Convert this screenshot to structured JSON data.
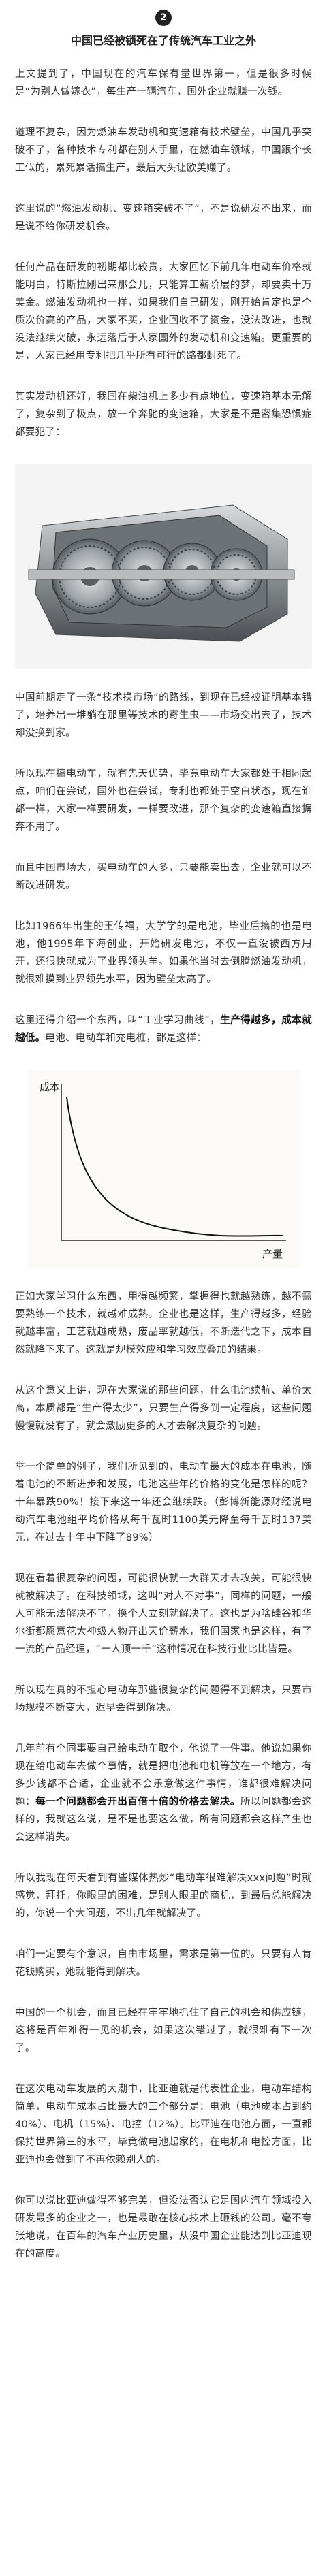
{
  "header": {
    "number": "2",
    "title": "中国已经被锁死在了传统汽车工业之外"
  },
  "section_1": [
    [
      {
        "text": "上文提到了，中国现在的汽车保有量世界第一，但是很多时候是“为别人做嫁衣”，每生产一辆汽车，国外企业就赚一次钱。"
      }
    ],
    [
      {
        "text": "道理不复杂，因为燃油车发动机和变速箱有技术壁垒，中国几乎突破不了，各种技术专利都在别人手里，在燃油车领域，中国跟个长工似的，累死累活搞生产，最后大头让欧美赚了。"
      }
    ],
    [
      {
        "text": "这里说的“燃油发动机、变速箱突破不了”，不是说研发不出来，而是说不给你研发机会。"
      }
    ],
    [
      {
        "text": "任何产品在研发的初期都比较贵，大家回忆下前几年电动车价格就能明白，特斯拉刚出来那会儿，只能算工薪阶层的梦，却要卖十万美金。燃油发动机也一样，如果我们自己研发，刚开始肯定也是个质次价高的产品，大家不买，企业回收不了资金，没法改进，也就没法继续突破，永远落后于人家国外的发动机和变速箱。更重要的是，人家已经用专利把几乎所有可行的路都封死了。"
      }
    ],
    [
      {
        "text": "其实发动机还好，我国在柴油机上多少有点地位，变速箱基本无解了，复杂到了极点，放一个奔驰的变速箱，大家是不是密集恐惧症都要犯了："
      }
    ]
  ],
  "section_2": [
    [
      {
        "text": "中国前期走了一条“技术换市场”的路线，到现在已经被证明基本错了，培养出一堆躺在那里等技术的寄生虫——市场交出去了，技术却没换到家。"
      }
    ],
    [
      {
        "text": "所以现在搞电动车，就有先天优势，毕竟电动车大家都处于相同起点，咱们在尝试，国外也在尝试，专利也都处于空白状态，现在谁都一样，大家一样要研发，一样要改进，那个复杂的变速箱直接摒弃不用了。"
      }
    ],
    [
      {
        "text": "而且中国市场大，买电动车的人多，只要能卖出去，企业就可以不断改进研发。"
      }
    ],
    [
      {
        "text": "比如1966年出生的王传福，大学学的是电池，毕业后搞的也是电池，他1995年下海创业，开始研发电池，不仅一直没被西方甩开，还很快就成为了业界领头羊。如果他当时去倒腾燃油发动机，就很难摸到业界领先水平，因为壁垒太高了。"
      }
    ],
    [
      {
        "text": "这里还得介绍一个东西，叫“工业学习曲线”，"
      },
      {
        "text": "生产得越多，成本就越低。",
        "bold": true
      },
      {
        "text": "电池、电动车和充电桩，都是这样："
      }
    ]
  ],
  "figure": {
    "y_label": "成本",
    "x_label": "产量"
  },
  "section_3": [
    [
      {
        "text": "正如大家学习什么东西，用得越频繁，掌握得也就越熟练，越不需要熟练一个技术，就越难成熟。企业也是这样，生产得越多，经验就越丰富，工艺就越成熟，废品率就越低，不断迭代之下，成本自然就降下来了。这就是规模效应和学习效应叠加的结果。"
      }
    ],
    [
      {
        "text": "从这个意义上讲，现在大家说的那些问题，什么电池续航、单价太高，本质都是“生产得太少”，只要生产得多到一定程度，这些问题慢慢就没有了，就会激励更多的人才去解决复杂的问题。"
      }
    ],
    [
      {
        "text": "举一个简单的例子，我们所见到的，电动车最大的成本在电池，随着电池的不断进步和发展，电池这些年的价格的变化是怎样的呢？十年暴跌90%！接下来这十年还会继续跌。（彭博新能源财经说电动汽车电池组平均价格从每千瓦时1100美元降至每千瓦时137美元，在过去十年中下降了89%）"
      }
    ],
    [
      {
        "text": "现在看着很复杂的问题，可能很快就一大群天才去攻关，可能很快就被解决了。在科技领域，这叫“对人不对事”，同样的问题，一般人可能无法解决不了，换个人立刻就解决了。这也是为啥硅谷和华尔街都愿意花大神级人物开出天价薪水，我们国家也是这样，有了一流的产品经理，“一人顶一千”这种情况在科技行业比比皆是。"
      }
    ],
    [
      {
        "text": "所以现在真的不担心电动车那些很复杂的问题得不到解决，只要市场规模不断变大，迟早会得到解决。"
      }
    ],
    [
      {
        "text": "几年前有个同事要自己给电动车取个，他说了一件事。他说如果你现在给电动车去做个事情，就是把电池和电机等放在一个地方，有多少钱都不合适，企业就不会乐意做这件事情，谁都很难解决问题："
      },
      {
        "text": "每一个问题都会开出百倍十倍的价格去解决。",
        "bold": true
      },
      {
        "text": "所以问题都会这样的，我就这么说，是不是也要这么做，所有问题都会这样产生也会这样消失。"
      }
    ],
    [
      {
        "text": "所以我现在每天看到有些媒体热炒“电动车很难解决xxx问题”时就感觉，拜托，你眼里的困难，是别人眼里的商机，到最后总能解决的，你说一个大问题，不出几年就解决了。"
      }
    ],
    [
      {
        "text": "咱们一定要有个意识，自由市场里，需求是第一位的。只要有人肯花钱购买，她就能得到解决。"
      }
    ],
    [
      {
        "text": "中国的一个机会，而且已经在牢牢地抓住了自己的机会和供应链，这将是百年难得一见的机会，如果这次错过了，就很难有下一次了。"
      }
    ],
    [
      {
        "text": "在这次电动车发展的大潮中，比亚迪就是代表性企业，电动车结构简单，电动车成本占比最大的三个部分是：电池（电池成本占到约40%）、电机（15%）、电控（12%）。比亚迪在电池方面，一直都保持世界第三的水平，毕竟做电池起家的，在电机和电控方面，比亚迪也会做到了不再依赖别人的。"
      }
    ],
    [
      {
        "text": "你可以说比亚迪做得不够完美，但没法否认它是国内汽车领域投入研发最多的企业之一，也是最敢在核心技术上砸钱的公司。毫不夸张地说，在百年的汽车产业历史里，从没中国企业能达到比亚迪现在的高度。"
      }
    ]
  ]
}
